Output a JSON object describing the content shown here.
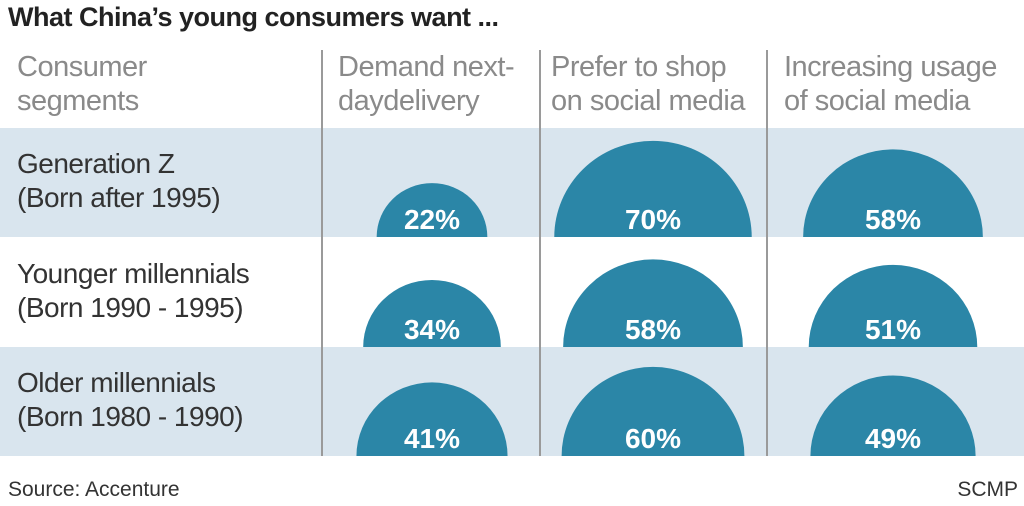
{
  "chart_data": {
    "type": "table",
    "title": "What China’s young consumers want ...",
    "row_header": "Consumer segments",
    "columns": [
      "Demand next-daydelivery",
      "Prefer to shop on social media",
      "Increasing usage of social media"
    ],
    "column_lines": [
      [
        "Demand next-",
        "daydelivery"
      ],
      [
        "Prefer to shop",
        "on social media"
      ],
      [
        "Increasing usage",
        "of social media"
      ]
    ],
    "row_header_lines": [
      "Consumer",
      "segments"
    ],
    "rows": [
      {
        "label": [
          "Generation Z",
          "(Born after 1995)"
        ],
        "values": [
          22,
          70,
          58
        ]
      },
      {
        "label": [
          "Younger millennials",
          "(Born 1990 - 1995)"
        ],
        "values": [
          34,
          58,
          51
        ]
      },
      {
        "label": [
          "Older millennials",
          "(Born 1980 - 1990)"
        ],
        "values": [
          41,
          60,
          49
        ]
      }
    ],
    "unit": "%",
    "colors": {
      "shape": "#2b86a7",
      "band": "#d9e5ee",
      "value_text": "#ffffff"
    }
  },
  "footer": {
    "source": "Source: Accenture",
    "credit": "SCMP"
  }
}
